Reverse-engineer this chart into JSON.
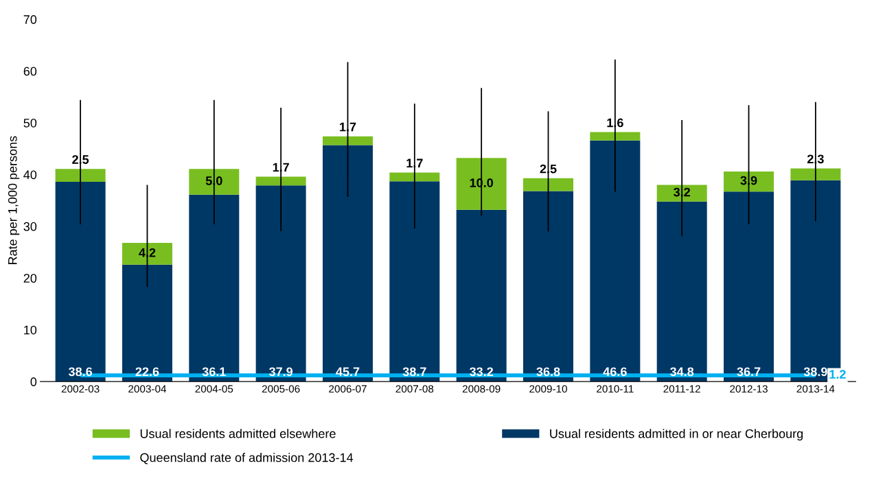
{
  "chart_data": {
    "type": "bar",
    "stacked": true,
    "ylabel": "Rate per 1,000 persons",
    "categories": [
      "2002-03",
      "2003-04",
      "2004-05",
      "2005-06",
      "2006-07",
      "2007-08",
      "2008-09",
      "2009-10",
      "2010-11",
      "2011-12",
      "2012-13",
      "2013-14"
    ],
    "series": [
      {
        "name": "Usual residents admitted in or near Cherbourg",
        "color": "#003865",
        "values": [
          38.6,
          22.6,
          36.1,
          37.9,
          45.7,
          38.7,
          33.2,
          36.8,
          46.6,
          34.8,
          36.7,
          38.9
        ]
      },
      {
        "name": "Usual residents admitted elsewhere",
        "color": "#78be20",
        "values": [
          2.5,
          4.2,
          5.0,
          1.7,
          1.7,
          1.7,
          10.0,
          2.5,
          1.6,
          3.2,
          3.9,
          2.3
        ],
        "value_labels": [
          "2.5",
          "4.2",
          "5.0",
          "1.7",
          "1.7",
          "1.7",
          "10.0",
          "2.5",
          "1.6",
          "3.2",
          "3.9",
          "2.3"
        ],
        "errors": [
          [
            30.5,
            54.3
          ],
          [
            18.4,
            37.9
          ],
          [
            30.5,
            54.3
          ],
          [
            29.2,
            52.8
          ],
          [
            35.8,
            61.6
          ],
          [
            29.7,
            53.6
          ],
          [
            32.2,
            56.6
          ],
          [
            29.1,
            52.1
          ],
          [
            36.8,
            62.1
          ],
          [
            28.2,
            50.4
          ],
          [
            30.5,
            53.3
          ],
          [
            31.1,
            53.9
          ]
        ]
      },
      {
        "name": "Queensland rate of admission 2013-14",
        "type": "line",
        "color": "#00b0f0",
        "values": [
          1.2,
          1.2,
          1.2,
          1.2,
          1.2,
          1.2,
          1.2,
          1.2,
          1.2,
          1.2,
          1.2,
          1.2
        ],
        "value_labels": [
          null,
          null,
          null,
          null,
          null,
          null,
          null,
          null,
          null,
          null,
          null,
          "1.2"
        ]
      }
    ],
    "ylim": [
      0,
      70
    ],
    "yticks": [
      0,
      10,
      20,
      30,
      40,
      50,
      60,
      70
    ],
    "data_labels": true,
    "legend": "bottom",
    "grid": false
  }
}
